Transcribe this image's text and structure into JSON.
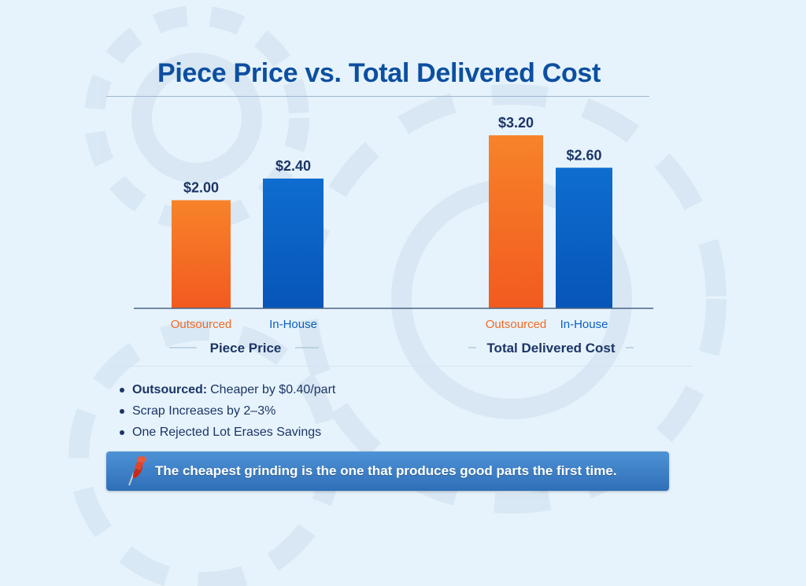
{
  "chart_data": {
    "type": "bar",
    "title": "Piece Price vs. Total Delivered Cost",
    "groups": [
      {
        "name": "Piece Price",
        "categories": [
          "Outsourced",
          "In-House"
        ],
        "values": [
          2.0,
          2.4
        ],
        "labels": [
          "$2.00",
          "$2.40"
        ]
      },
      {
        "name": "Total Delivered Cost",
        "categories": [
          "Outsourced",
          "In-House"
        ],
        "values": [
          3.2,
          2.6
        ],
        "labels": [
          "$3.20",
          "$2.60"
        ]
      }
    ],
    "colors": {
      "Outsourced": "#f26a22",
      "In-House": "#0a5fc4"
    },
    "grid": false,
    "ylim": [
      0,
      3.4
    ]
  },
  "bullets": [
    {
      "bold": "Outsourced:",
      "text": "Cheaper by $0.40/part"
    },
    {
      "bold": "",
      "text": "Scrap Increases by 2–3%"
    },
    {
      "bold": "",
      "text": "One Rejected Lot Erases Savings"
    }
  ],
  "banner": {
    "text": "The cheapest grinding is the one that produces good parts the first time.",
    "icon": "pushpin-icon"
  }
}
